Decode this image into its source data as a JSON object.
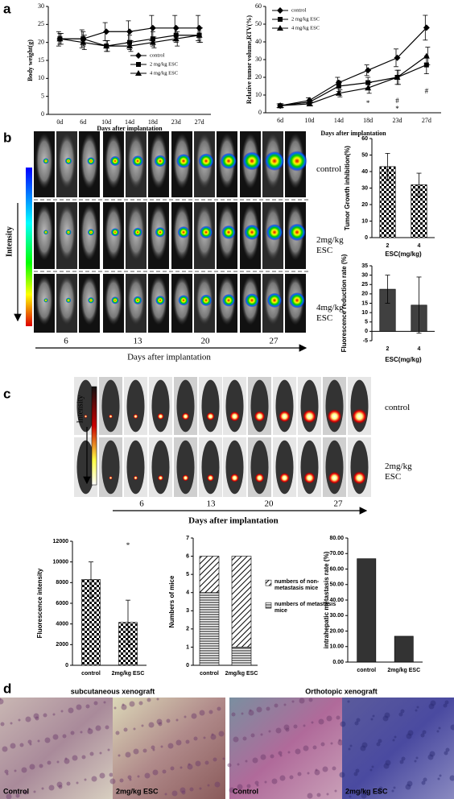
{
  "panel_labels": [
    "a",
    "b",
    "c",
    "d"
  ],
  "chart_data": [
    {
      "type": "line",
      "ylabel": "Body weight(g)",
      "xlabel": "Days after implantation",
      "categories": [
        "0d",
        "6d",
        "10d",
        "14d",
        "18d",
        "23d",
        "27d"
      ],
      "ylim": [
        0,
        30
      ],
      "yticks": [
        0,
        5,
        10,
        15,
        20,
        25,
        30
      ],
      "legend": "center-right",
      "series": [
        {
          "name": "control",
          "color": "#000000",
          "marker": "diamond",
          "values": [
            21,
            21,
            23,
            23,
            24,
            24,
            24
          ],
          "errors": [
            2,
            2.5,
            2.5,
            3,
            3.5,
            3.5,
            3.5
          ]
        },
        {
          "name": "2 mg/kg ESC",
          "color": "#000000",
          "marker": "square",
          "values": [
            21,
            21,
            19,
            20,
            21,
            22,
            22
          ],
          "errors": [
            1.5,
            2,
            1.5,
            2,
            2,
            2,
            2
          ]
        },
        {
          "name": "4 mg/kg ESC",
          "color": "#000000",
          "marker": "triangle",
          "values": [
            21,
            20,
            19,
            19,
            20,
            21,
            22
          ],
          "errors": [
            1.5,
            2,
            1.5,
            1.5,
            1.5,
            2,
            2
          ]
        }
      ]
    },
    {
      "type": "line",
      "ylabel": "Relative tumor volume,RTV(%)",
      "xlabel": "Days after implantation",
      "categories": [
        "6d",
        "10d",
        "14d",
        "18d",
        "23d",
        "27d"
      ],
      "ylim": [
        0,
        60
      ],
      "yticks": [
        0,
        10,
        20,
        30,
        40,
        50,
        60
      ],
      "legend": "top-left",
      "annotations": [
        "*",
        "#",
        "*",
        "#"
      ],
      "series": [
        {
          "name": "control",
          "color": "#000000",
          "marker": "diamond",
          "values": [
            4,
            7,
            17,
            24,
            31,
            48
          ],
          "errors": [
            1,
            1.5,
            3,
            3,
            5,
            7
          ]
        },
        {
          "name": "2 mg/kg ESC",
          "color": "#000000",
          "marker": "square",
          "values": [
            4,
            6,
            15,
            17,
            20,
            27
          ],
          "errors": [
            1,
            1,
            3,
            3,
            4,
            5
          ]
        },
        {
          "name": "4 mg/kg ESC",
          "color": "#000000",
          "marker": "triangle",
          "values": [
            4,
            5,
            11,
            14,
            20,
            32
          ],
          "errors": [
            1,
            1,
            2,
            3,
            4,
            5
          ]
        }
      ]
    },
    {
      "type": "bar",
      "ylabel": "Tumor Growth inhibition(%)",
      "xlabel": "ESC(mg/kg)",
      "categories": [
        "2",
        "4"
      ],
      "values": [
        43,
        32
      ],
      "errors": [
        8,
        7
      ],
      "pattern": "checker",
      "color": "#000000",
      "ylim": [
        0,
        60
      ],
      "yticks": [
        0,
        10,
        20,
        30,
        40,
        50,
        60
      ]
    },
    {
      "type": "bar",
      "ylabel": "Fluorescence reduction rate (%)",
      "xlabel": "ESC(mg/kg)",
      "categories": [
        "2",
        "4"
      ],
      "values": [
        22.5,
        14
      ],
      "errors": [
        7.5,
        15
      ],
      "color": "#404040",
      "ylim": [
        -5,
        35
      ],
      "yticks": [
        -5,
        0,
        5,
        10,
        15,
        20,
        25,
        30,
        35
      ]
    },
    {
      "type": "bar",
      "ylabel": "Fluorescence intensity",
      "categories": [
        "control",
        "2mg/kg ESC"
      ],
      "values": [
        8300,
        4150
      ],
      "errors": [
        1700,
        2150
      ],
      "pattern": "checker",
      "color": "#000000",
      "ylim": [
        0,
        12000
      ],
      "yticks": [
        0,
        2000,
        4000,
        6000,
        8000,
        10000,
        12000
      ],
      "annotations": [
        "*"
      ]
    },
    {
      "type": "stacked_bar",
      "ylabel": "Numbers of mice",
      "categories": [
        "control",
        "2mg/kg ESC"
      ],
      "ylim": [
        0,
        7
      ],
      "yticks": [
        0,
        1,
        2,
        3,
        4,
        5,
        6,
        7
      ],
      "legend": "outside-right",
      "series": [
        {
          "name": "numbers of metastasis mice",
          "pattern": "hlines",
          "color": "#000000",
          "values": [
            4,
            1
          ]
        },
        {
          "name": "numbers of non-metastasis mice",
          "pattern": "diag",
          "color": "#000000",
          "values": [
            2,
            5
          ]
        }
      ]
    },
    {
      "type": "bar",
      "ylabel": "intrahepatic metastasis rate (%)",
      "categories": [
        "control",
        "2mg/kg ESC"
      ],
      "values": [
        66.67,
        16.67
      ],
      "color": "#333333",
      "ylim": [
        0,
        80
      ],
      "yticks": [
        {
          "value": 0,
          "label": "0.00"
        },
        {
          "value": 10,
          "label": "10.00"
        },
        {
          "value": 20,
          "label": "20.00"
        },
        {
          "value": 30,
          "label": "30.00"
        },
        {
          "value": 40,
          "label": "40.00"
        },
        {
          "value": 50,
          "label": "50.00"
        },
        {
          "value": 60,
          "label": "60.00"
        },
        {
          "value": 70,
          "label": "70.00"
        },
        {
          "value": 80,
          "label": "80.00"
        }
      ]
    }
  ],
  "imaging_b": {
    "rows": [
      "control",
      "2mg/kg ESC",
      "4mg/kg ESC"
    ],
    "colorbar_label": "Intensity",
    "days": [
      "6",
      "13",
      "20",
      "27"
    ],
    "xlabel": "Days after implantation"
  },
  "imaging_c": {
    "rows": [
      "control",
      "2mg/kg ESC"
    ],
    "colorbar_label": "Intensity",
    "days": [
      "6",
      "13",
      "20",
      "27"
    ],
    "xlabel": "Days after implantation"
  },
  "histology": {
    "groups": [
      {
        "title": "subcutaneous  xenograft",
        "images": [
          "Control",
          "2mg/kg ESC"
        ]
      },
      {
        "title": "Orthotopic  xenograft",
        "images": [
          "Control",
          "2mg/kg ESC"
        ]
      }
    ]
  }
}
